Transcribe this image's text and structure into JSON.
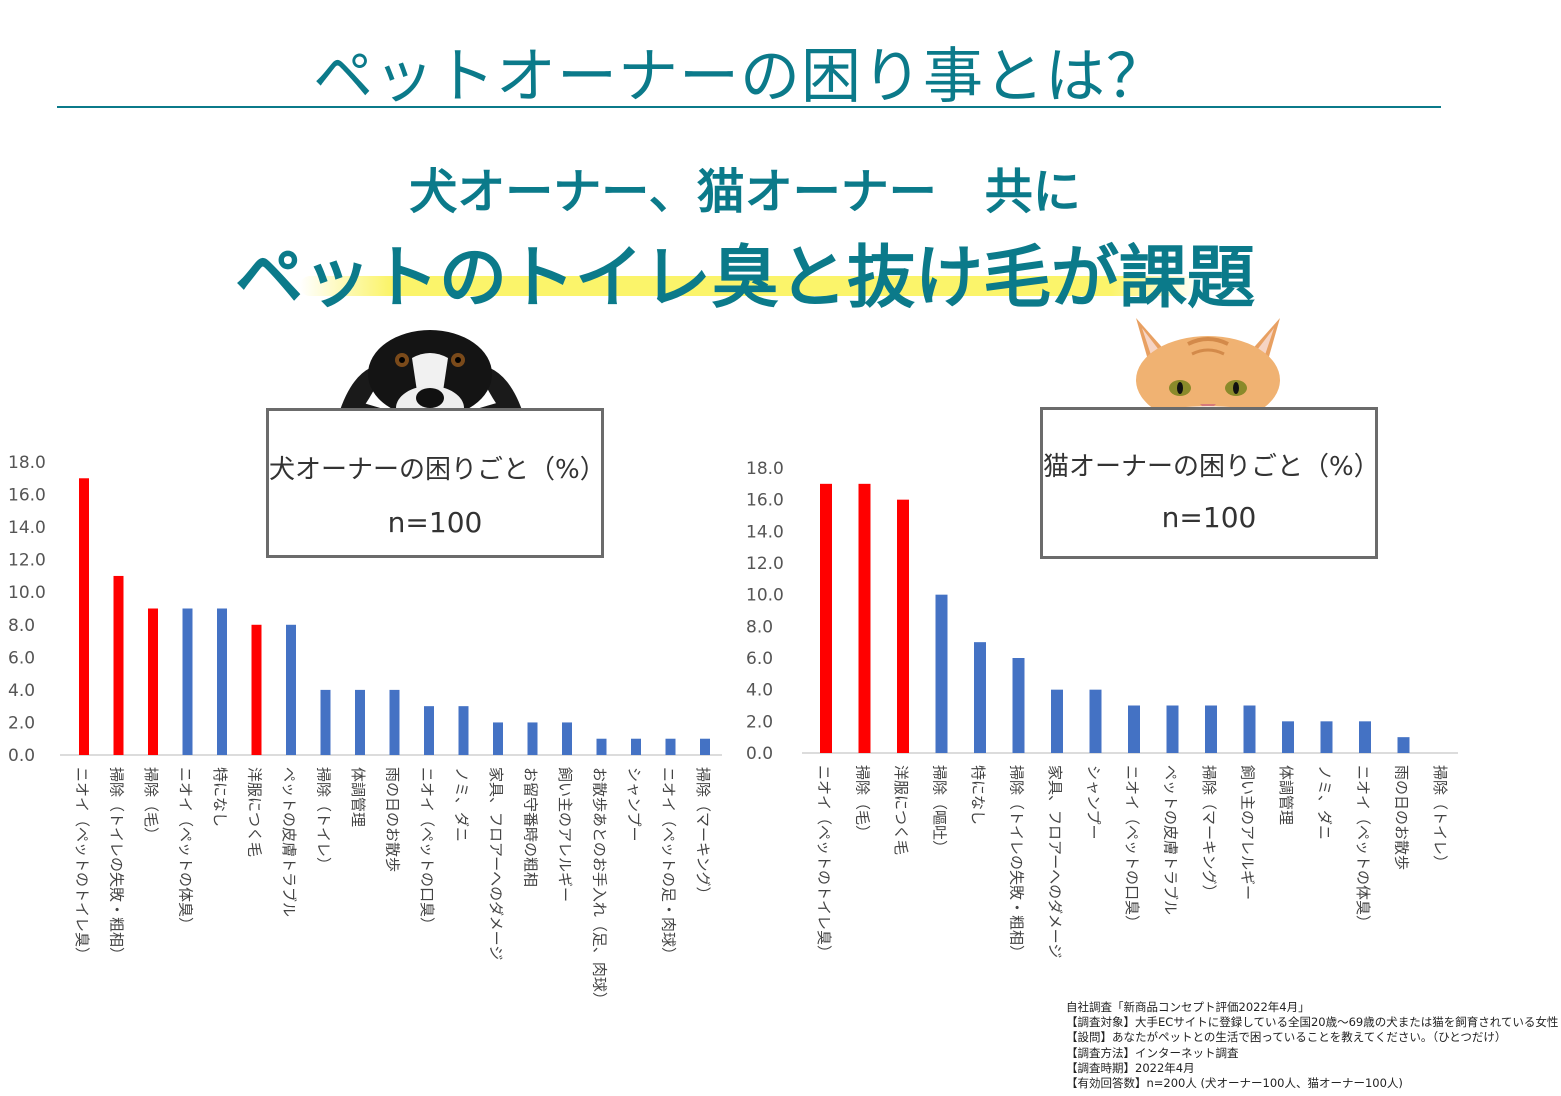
{
  "title": "ペットオーナーの困り事とは？",
  "headline_line1": "犬オーナー、猫オーナー　共に",
  "headline_line2": "ペットのトイレ臭と抜け毛が課題",
  "colors": {
    "teal": "#0b7a8a",
    "highlight_bar": "#ff0000",
    "normal_bar": "#4472c4",
    "box_border": "#6b6b6b",
    "marker": "#fbf46a"
  },
  "dog_box": {
    "title": "犬オーナーの困りごと（%）",
    "n": "n=100"
  },
  "cat_box": {
    "title": "猫オーナーの困りごと（%）",
    "n": "n=100"
  },
  "chart_data": [
    {
      "type": "bar",
      "ylim": [
        0,
        18
      ],
      "yticks": [
        "0.0",
        "2.0",
        "4.0",
        "6.0",
        "8.0",
        "10.0",
        "12.0",
        "14.0",
        "16.0",
        "18.0"
      ],
      "categories": [
        "ニオイ（ペットのトイレ臭）",
        "掃除（トイレの失敗・粗相）",
        "掃除（毛）",
        "ニオイ（ペットの体臭）",
        "特になし",
        "洋服につく毛",
        "ペットの皮膚トラブル",
        "掃除（トイレ）",
        "体調管理",
        "雨の日のお散歩",
        "ニオイ（ペットの口臭）",
        "ノミ、ダニ",
        "家具、フロアーへのダメージ",
        "お留守番時の粗相",
        "飼い主のアレルギー",
        "お散歩あとのお手入れ（足、肉球）",
        "シャンプー",
        "ニオイ（ペットの足・肉球）",
        "掃除（マーキング）"
      ],
      "values": [
        17,
        11,
        9,
        9,
        9,
        8,
        8,
        4,
        4,
        4,
        3,
        3,
        2,
        2,
        2,
        1,
        1,
        1,
        1
      ],
      "highlight": [
        true,
        true,
        true,
        false,
        false,
        true,
        false,
        false,
        false,
        false,
        false,
        false,
        false,
        false,
        false,
        false,
        false,
        false,
        false
      ],
      "grid": false
    },
    {
      "type": "bar",
      "ylim": [
        0,
        18
      ],
      "yticks": [
        "0.0",
        "2.0",
        "4.0",
        "6.0",
        "8.0",
        "10.0",
        "12.0",
        "14.0",
        "16.0",
        "18.0"
      ],
      "categories": [
        "ニオイ（ペットのトイレ臭）",
        "掃除（毛）",
        "洋服につく毛",
        "掃除（嘔吐）",
        "特になし",
        "掃除（トイレの失敗・粗相）",
        "家具、フロアーへのダメージ",
        "シャンプー",
        "ニオイ（ペットの口臭）",
        "ペットの皮膚トラブル",
        "掃除（マーキング）",
        "飼い主のアレルギー",
        "体調管理",
        "ノミ、ダニ",
        "ニオイ（ペットの体臭）",
        "雨の日のお散歩",
        "掃除（トイレ）"
      ],
      "values": [
        17,
        17,
        16,
        10,
        7,
        6,
        4,
        4,
        3,
        3,
        3,
        3,
        2,
        2,
        2,
        1,
        0
      ],
      "highlight": [
        true,
        true,
        true,
        false,
        false,
        false,
        false,
        false,
        false,
        false,
        false,
        false,
        false,
        false,
        false,
        false,
        false
      ],
      "grid": false
    }
  ],
  "source_lines": [
    "自社調査「新商品コンセプト評価2022年4月」",
    "【調査対象】大手ECサイトに登録している全国20歳～69歳の犬または猫を飼育されている女性",
    "【設問】あなたがペットとの生活で困っていることを教えてください。（ひとつだけ）",
    "【調査方法】インターネット調査",
    "【調査時期】2022年4月",
    "【有効回答数】n=200人 (犬オーナー100人、猫オーナー100人)"
  ]
}
